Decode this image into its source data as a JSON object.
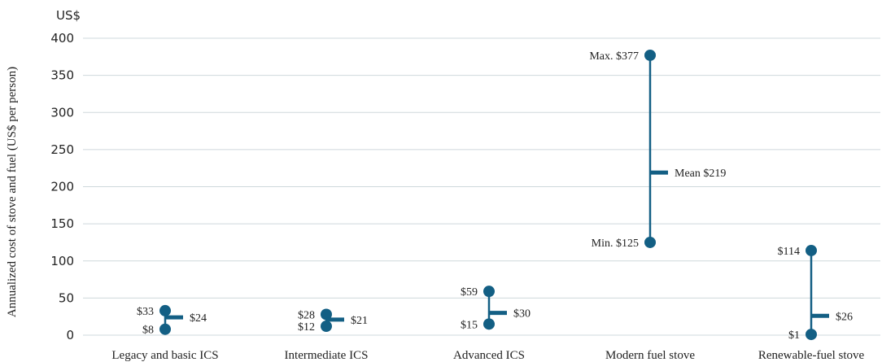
{
  "chart_data": {
    "type": "range",
    "unit_label": "US$",
    "ylabel": "Annualized cost of stove and fuel (US$ per person)",
    "ylim": [
      0,
      400
    ],
    "yticks": [
      0,
      50,
      100,
      150,
      200,
      250,
      300,
      350,
      400
    ],
    "grid": true,
    "color": "#135f84",
    "categories": [
      "Legacy and basic ICS",
      "Intermediate ICS",
      "Advanced ICS",
      "Modern fuel stove",
      "Renewable-fuel stove"
    ],
    "series": [
      {
        "category": "Legacy and basic ICS",
        "min": 8,
        "max": 33,
        "mean": 24,
        "min_label": "$8",
        "max_label": "$33",
        "mean_label": "$24"
      },
      {
        "category": "Intermediate ICS",
        "min": 12,
        "max": 28,
        "mean": 21,
        "min_label": "$12",
        "max_label": "$28",
        "mean_label": "$21"
      },
      {
        "category": "Advanced ICS",
        "min": 15,
        "max": 59,
        "mean": 30,
        "min_label": "$15",
        "max_label": "$59",
        "mean_label": "$30"
      },
      {
        "category": "Modern fuel stove",
        "min": 125,
        "max": 377,
        "mean": 219,
        "min_label": "Min. $125",
        "max_label": "Max. $377",
        "mean_label": "Mean $219"
      },
      {
        "category": "Renewable-fuel stove",
        "min": 1,
        "max": 114,
        "mean": 26,
        "min_label": "$1",
        "max_label": "$114",
        "mean_label": "$26"
      }
    ]
  }
}
